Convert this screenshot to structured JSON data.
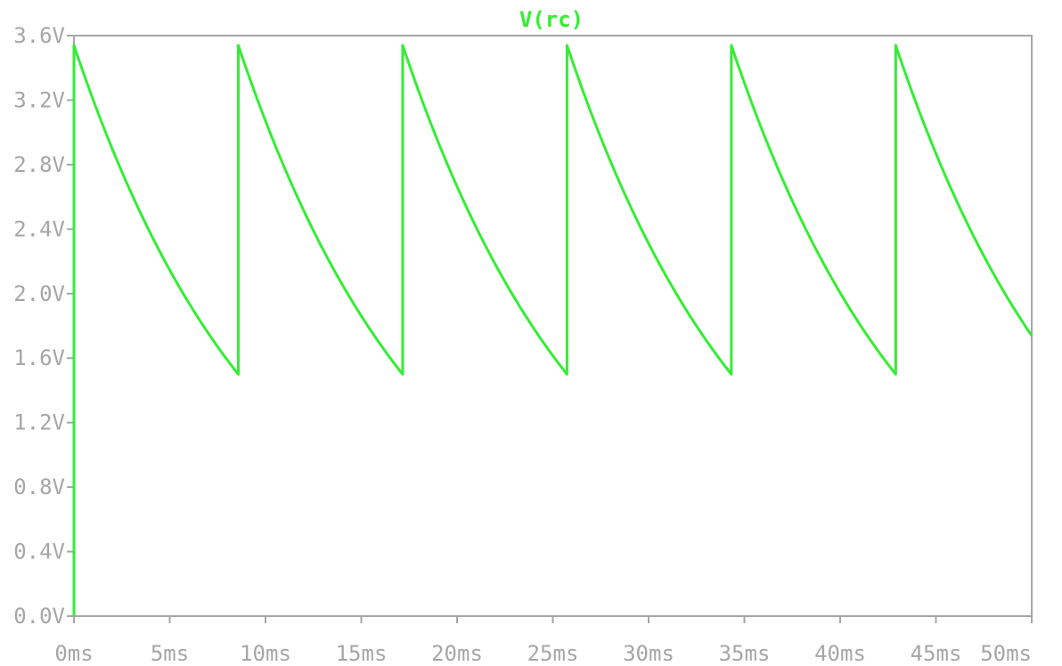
{
  "chart_data": {
    "type": "line",
    "title": "V(rc)",
    "xlabel": "",
    "ylabel": "",
    "x_unit": "ms",
    "y_unit": "V",
    "xlim": [
      0,
      50
    ],
    "ylim": [
      0,
      3.6
    ],
    "x_ticks": [
      "0ms",
      "5ms",
      "10ms",
      "15ms",
      "20ms",
      "25ms",
      "30ms",
      "35ms",
      "40ms",
      "45ms",
      "50ms"
    ],
    "y_ticks": [
      "0.0V",
      "0.4V",
      "0.8V",
      "1.2V",
      "1.6V",
      "2.0V",
      "2.4V",
      "2.8V",
      "3.2V",
      "3.6V"
    ],
    "grid": false,
    "legend": "none",
    "colors": {
      "trace": "#33ee33",
      "axis": "#a6a6a6",
      "background": "#ffffff"
    },
    "series": [
      {
        "name": "V(rc)",
        "x": [
          0,
          0,
          8.58,
          8.58,
          17.16,
          17.16,
          25.74,
          25.74,
          34.32,
          34.32,
          42.9,
          42.9,
          50
        ],
        "y": [
          0,
          3.54,
          1.5,
          3.54,
          1.5,
          3.54,
          1.5,
          3.54,
          1.5,
          3.54,
          1.5,
          3.54,
          1.76
        ],
        "segment_shape": "exponential decay between spikes"
      }
    ]
  }
}
